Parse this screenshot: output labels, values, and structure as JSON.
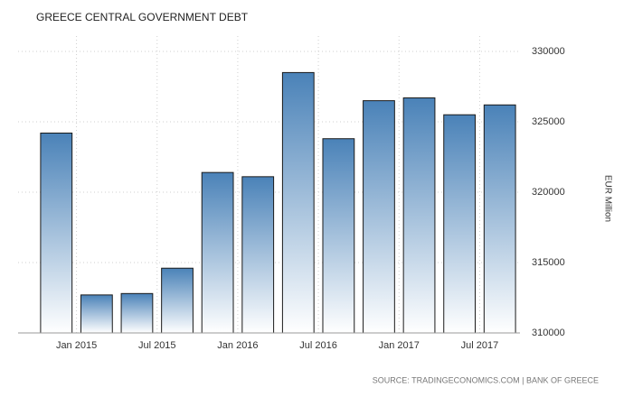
{
  "chart_data": {
    "type": "bar",
    "title": "GREECE CENTRAL GOVERNMENT DEBT",
    "y_label": "EUR Million",
    "source": "SOURCE: TRADINGECONOMICS.COM | BANK OF GREECE",
    "categories": [
      null,
      null,
      null,
      null,
      null,
      null,
      null,
      null,
      null,
      null,
      null,
      null
    ],
    "x_tick_labels": [
      "Jan 2015",
      "Jul 2015",
      "Jan 2016",
      "Jul 2016",
      "Jan 2017",
      "Jul 2017"
    ],
    "values": [
      324200,
      312700,
      312800,
      314600,
      321400,
      321100,
      328500,
      323800,
      326500,
      326700,
      325500,
      326200
    ],
    "color": "#4a82b8",
    "ylim": [
      310000,
      330000
    ],
    "yticks": [
      310000,
      315000,
      320000,
      325000,
      330000
    ],
    "grid": true
  }
}
